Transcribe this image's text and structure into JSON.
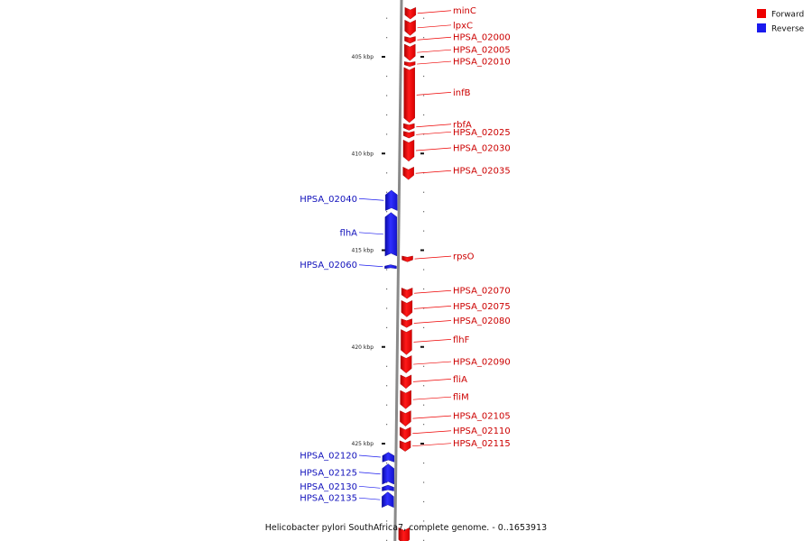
{
  "caption": "Helicobacter pylori SouthAfrica7, complete genome. - 0..1653913",
  "colors": {
    "forward": "#ee0000",
    "reverse": "#1a1aee",
    "axis": "#8a8a8a"
  },
  "legend": [
    {
      "label": "Forward",
      "color": "#ee0000"
    },
    {
      "label": "Reverse",
      "color": "#1a1aee"
    }
  ],
  "scale": {
    "unit": "kbp",
    "major_ticks": [
      {
        "kbp": 405,
        "label": "405 kbp"
      },
      {
        "kbp": 410,
        "label": "410 kbp"
      },
      {
        "kbp": 415,
        "label": "415 kbp"
      },
      {
        "kbp": 420,
        "label": "420 kbp"
      },
      {
        "kbp": 425,
        "label": "425 kbp"
      }
    ]
  },
  "genes": [
    {
      "name": "minC",
      "strand": "forward",
      "start_kbp": 402.45,
      "end_kbp": 403.05
    },
    {
      "name": "lpxC",
      "strand": "forward",
      "start_kbp": 403.1,
      "end_kbp": 403.9
    },
    {
      "name": "HPSA_02000",
      "strand": "forward",
      "start_kbp": 403.95,
      "end_kbp": 404.3
    },
    {
      "name": "HPSA_02005",
      "strand": "forward",
      "start_kbp": 404.35,
      "end_kbp": 405.2
    },
    {
      "name": "HPSA_02010",
      "strand": "forward",
      "start_kbp": 405.25,
      "end_kbp": 405.5
    },
    {
      "name": "infB",
      "strand": "forward",
      "start_kbp": 405.55,
      "end_kbp": 408.4
    },
    {
      "name": "rbfA",
      "strand": "forward",
      "start_kbp": 408.45,
      "end_kbp": 408.8
    },
    {
      "name": "HPSA_02025",
      "strand": "forward",
      "start_kbp": 408.85,
      "end_kbp": 409.2
    },
    {
      "name": "HPSA_02030",
      "strand": "forward",
      "start_kbp": 409.3,
      "end_kbp": 410.4
    },
    {
      "name": "HPSA_02035",
      "strand": "forward",
      "start_kbp": 410.7,
      "end_kbp": 411.35
    },
    {
      "name": "HPSA_02040",
      "strand": "reverse",
      "start_kbp": 411.9,
      "end_kbp": 412.95
    },
    {
      "name": "flhA",
      "strand": "reverse",
      "start_kbp": 413.05,
      "end_kbp": 415.3
    },
    {
      "name": "HPSA_02060",
      "strand": "reverse",
      "start_kbp": 415.75,
      "end_kbp": 415.95
    },
    {
      "name": "rpsO",
      "strand": "forward",
      "start_kbp": 415.3,
      "end_kbp": 415.6
    },
    {
      "name": "HPSA_02070",
      "strand": "forward",
      "start_kbp": 416.95,
      "end_kbp": 417.5
    },
    {
      "name": "HPSA_02075",
      "strand": "forward",
      "start_kbp": 417.6,
      "end_kbp": 418.45
    },
    {
      "name": "HPSA_02080",
      "strand": "forward",
      "start_kbp": 418.55,
      "end_kbp": 419.0
    },
    {
      "name": "flhF",
      "strand": "forward",
      "start_kbp": 419.1,
      "end_kbp": 420.4
    },
    {
      "name": "HPSA_02090",
      "strand": "forward",
      "start_kbp": 420.45,
      "end_kbp": 421.35
    },
    {
      "name": "fliA",
      "strand": "forward",
      "start_kbp": 421.45,
      "end_kbp": 422.15
    },
    {
      "name": "fliM",
      "strand": "forward",
      "start_kbp": 422.25,
      "end_kbp": 423.2
    },
    {
      "name": "HPSA_02105",
      "strand": "forward",
      "start_kbp": 423.3,
      "end_kbp": 424.1
    },
    {
      "name": "HPSA_02110",
      "strand": "forward",
      "start_kbp": 424.15,
      "end_kbp": 424.8
    },
    {
      "name": "HPSA_02115",
      "strand": "forward",
      "start_kbp": 424.85,
      "end_kbp": 425.4
    },
    {
      "name": "HPSA_02120",
      "strand": "reverse",
      "start_kbp": 425.45,
      "end_kbp": 425.95
    },
    {
      "name": "HPSA_02125",
      "strand": "reverse",
      "start_kbp": 426.05,
      "end_kbp": 427.1
    },
    {
      "name": "HPSA_02130",
      "strand": "reverse",
      "start_kbp": 427.15,
      "end_kbp": 427.45
    },
    {
      "name": "HPSA_02135",
      "strand": "reverse",
      "start_kbp": 427.5,
      "end_kbp": 428.3
    },
    {
      "name": "",
      "strand": "forward",
      "start_kbp": 429.35,
      "end_kbp": 430.2
    }
  ]
}
